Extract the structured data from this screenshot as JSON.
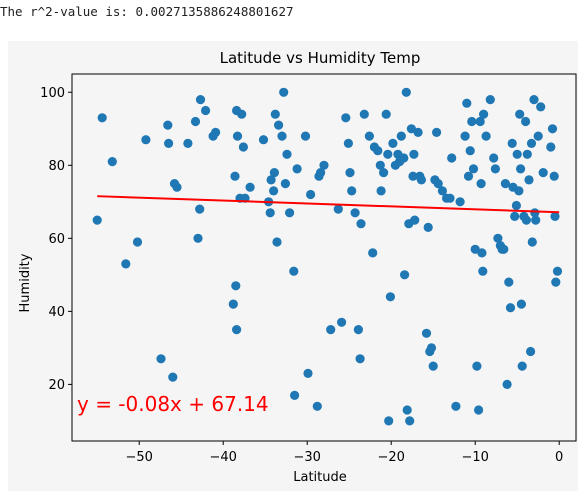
{
  "output": {
    "r2_text": "The r^2-value is: 0.0027135886248801627"
  },
  "chart_data": {
    "type": "scatter",
    "title": "Latitude vs Humidity Temp",
    "xlabel": "Latitude",
    "ylabel": "Humidity",
    "xlim": [
      -58,
      2
    ],
    "ylim": [
      4.5,
      105
    ],
    "xticks": [
      -50,
      -40,
      -30,
      -20,
      -10,
      0
    ],
    "yticks": [
      20,
      40,
      60,
      80,
      100
    ],
    "xtick_labels": [
      "−50",
      "−40",
      "−30",
      "−20",
      "−10",
      "0"
    ],
    "ytick_labels": [
      "20",
      "40",
      "60",
      "80",
      "100"
    ],
    "point_color": "#1f77b4",
    "line_color": "#ff0000",
    "annotation": "y = -0.08x + 67.14",
    "regression": {
      "slope": -0.08,
      "intercept": 67.14,
      "x_range": [
        -55,
        0
      ]
    },
    "points": [
      [
        -55,
        65
      ],
      [
        -54.4,
        93
      ],
      [
        -53.2,
        81
      ],
      [
        -51.6,
        53
      ],
      [
        -50.2,
        59
      ],
      [
        -49.2,
        87
      ],
      [
        -47.4,
        27
      ],
      [
        -46.6,
        91
      ],
      [
        -46.5,
        86
      ],
      [
        -46,
        22
      ],
      [
        -45.8,
        75
      ],
      [
        -45.5,
        74
      ],
      [
        -44.2,
        86
      ],
      [
        -43.3,
        92
      ],
      [
        -43,
        60
      ],
      [
        -42.8,
        68
      ],
      [
        -42.7,
        98
      ],
      [
        -42.1,
        95
      ],
      [
        -41.2,
        88
      ],
      [
        -40.9,
        89
      ],
      [
        -38.8,
        42
      ],
      [
        -38.6,
        77
      ],
      [
        -38.5,
        47
      ],
      [
        -38.4,
        35
      ],
      [
        -38.4,
        95
      ],
      [
        -38.3,
        88
      ],
      [
        -38,
        71
      ],
      [
        -37.8,
        94
      ],
      [
        -37.6,
        85
      ],
      [
        -37.4,
        71
      ],
      [
        -36.8,
        74
      ],
      [
        -35.2,
        87
      ],
      [
        -34.6,
        70
      ],
      [
        -34.4,
        67
      ],
      [
        -34.3,
        76
      ],
      [
        -34,
        73
      ],
      [
        -33.9,
        78
      ],
      [
        -33.8,
        94
      ],
      [
        -33.6,
        59
      ],
      [
        -33.4,
        91
      ],
      [
        -33,
        88
      ],
      [
        -32.8,
        100
      ],
      [
        -32.6,
        75
      ],
      [
        -32.4,
        83
      ],
      [
        -32.1,
        67
      ],
      [
        -31.6,
        51
      ],
      [
        -31.5,
        17
      ],
      [
        -31.2,
        79
      ],
      [
        -30.2,
        88
      ],
      [
        -29.9,
        23
      ],
      [
        -29.6,
        72
      ],
      [
        -28.8,
        14
      ],
      [
        -28.6,
        77
      ],
      [
        -28.4,
        78
      ],
      [
        -28,
        80
      ],
      [
        -27.2,
        35
      ],
      [
        -26.3,
        68
      ],
      [
        -25.9,
        37
      ],
      [
        -25.4,
        93
      ],
      [
        -25.1,
        86
      ],
      [
        -24.9,
        78
      ],
      [
        -24.7,
        73
      ],
      [
        -24.3,
        67
      ],
      [
        -23.9,
        35
      ],
      [
        -23.7,
        27
      ],
      [
        -23.6,
        64
      ],
      [
        -23.2,
        94
      ],
      [
        -22.6,
        88
      ],
      [
        -22.2,
        56
      ],
      [
        -22,
        85
      ],
      [
        -21.6,
        84
      ],
      [
        -21.3,
        80
      ],
      [
        -21.2,
        73
      ],
      [
        -20.9,
        78
      ],
      [
        -20.6,
        94
      ],
      [
        -20.4,
        83
      ],
      [
        -20.3,
        10
      ],
      [
        -20.1,
        44
      ],
      [
        -19.8,
        86
      ],
      [
        -19.5,
        80
      ],
      [
        -19.2,
        83
      ],
      [
        -19,
        81
      ],
      [
        -18.8,
        88
      ],
      [
        -18.5,
        82
      ],
      [
        -18.4,
        50
      ],
      [
        -18.2,
        100
      ],
      [
        -18.1,
        13
      ],
      [
        -17.9,
        64
      ],
      [
        -17.8,
        10
      ],
      [
        -17.6,
        90
      ],
      [
        -17.4,
        77
      ],
      [
        -17.3,
        83
      ],
      [
        -17.2,
        65
      ],
      [
        -16.8,
        89
      ],
      [
        -16.6,
        77
      ],
      [
        -16.4,
        76
      ],
      [
        -15.8,
        34
      ],
      [
        -15.6,
        63
      ],
      [
        -15.4,
        29
      ],
      [
        -15.2,
        30
      ],
      [
        -15,
        25
      ],
      [
        -14.8,
        76
      ],
      [
        -14.6,
        89
      ],
      [
        -14.4,
        75
      ],
      [
        -13.9,
        73
      ],
      [
        -13.4,
        71
      ],
      [
        -13,
        71
      ],
      [
        -12.8,
        82
      ],
      [
        -12.3,
        14
      ],
      [
        -11.8,
        70
      ],
      [
        -11.2,
        88
      ],
      [
        -11,
        97
      ],
      [
        -10.8,
        77
      ],
      [
        -10.6,
        84
      ],
      [
        -10.4,
        92
      ],
      [
        -10.2,
        79
      ],
      [
        -10,
        57
      ],
      [
        -9.8,
        25
      ],
      [
        -9.6,
        13
      ],
      [
        -9.4,
        92
      ],
      [
        -9.3,
        75
      ],
      [
        -9.2,
        56
      ],
      [
        -9.1,
        51
      ],
      [
        -9,
        94
      ],
      [
        -8.7,
        88
      ],
      [
        -8.2,
        98
      ],
      [
        -7.8,
        82
      ],
      [
        -7.6,
        79
      ],
      [
        -7.3,
        60
      ],
      [
        -7,
        58
      ],
      [
        -6.8,
        57
      ],
      [
        -6.6,
        57
      ],
      [
        -6.4,
        75
      ],
      [
        -6.2,
        20
      ],
      [
        -6,
        48
      ],
      [
        -5.8,
        41
      ],
      [
        -5.6,
        86
      ],
      [
        -5.5,
        74
      ],
      [
        -5.3,
        66
      ],
      [
        -5.1,
        69
      ],
      [
        -5,
        83
      ],
      [
        -4.8,
        73
      ],
      [
        -4.7,
        94
      ],
      [
        -4.6,
        79
      ],
      [
        -4.5,
        42
      ],
      [
        -4.4,
        25
      ],
      [
        -4.2,
        66
      ],
      [
        -4,
        92
      ],
      [
        -3.9,
        65
      ],
      [
        -3.8,
        83
      ],
      [
        -3.6,
        76
      ],
      [
        -3.4,
        29
      ],
      [
        -3.3,
        86
      ],
      [
        -3.2,
        59
      ],
      [
        -3,
        98
      ],
      [
        -2.9,
        67
      ],
      [
        -2.8,
        65
      ],
      [
        -2.5,
        88
      ],
      [
        -2.2,
        96
      ],
      [
        -1.9,
        78
      ],
      [
        -1,
        85
      ],
      [
        -0.8,
        90
      ],
      [
        -0.6,
        77
      ],
      [
        -0.5,
        66
      ],
      [
        -0.4,
        48
      ],
      [
        -0.2,
        51
      ]
    ]
  }
}
